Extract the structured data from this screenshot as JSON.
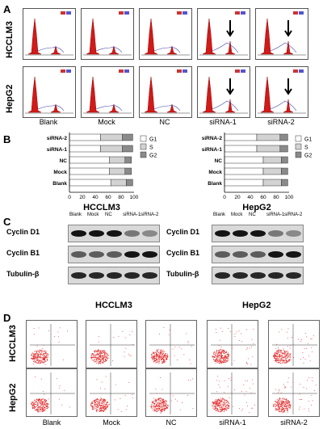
{
  "panels": {
    "A": "A",
    "B": "B",
    "C": "C",
    "D": "D"
  },
  "rows": {
    "hcclm3": "HCCLM3",
    "hepg2": "HepG2"
  },
  "columns": [
    "Blank",
    "Mock",
    "NC",
    "siRNA-1",
    "siRNA-2"
  ],
  "chart_data": [
    {
      "type": "bar",
      "stacked": true,
      "orientation": "horizontal",
      "title": "HCCLM3",
      "categories": [
        "siRNA-2",
        "siRNA-1",
        "NC",
        "Mock",
        "Blank"
      ],
      "series": [
        {
          "name": "G1",
          "values": [
            48,
            48,
            62,
            62,
            64
          ]
        },
        {
          "name": "S",
          "values": [
            34,
            34,
            24,
            24,
            24
          ]
        },
        {
          "name": "G2",
          "values": [
            16,
            16,
            10,
            10,
            10
          ]
        }
      ],
      "xticks": [
        "0",
        "20",
        "40",
        "60",
        "80",
        "100"
      ],
      "xlim": [
        0,
        100
      ],
      "legend_position": "right",
      "colors": {
        "G1": "#ffffff",
        "S": "#d3d3d3",
        "G2": "#8a8a8a"
      }
    },
    {
      "type": "bar",
      "stacked": true,
      "orientation": "horizontal",
      "title": "HepG2",
      "categories": [
        "siRNA-2",
        "siRNA-1",
        "NC",
        "Mock",
        "Blank"
      ],
      "series": [
        {
          "name": "G1",
          "values": [
            50,
            50,
            60,
            60,
            60
          ]
        },
        {
          "name": "S",
          "values": [
            36,
            36,
            28,
            28,
            28
          ]
        },
        {
          "name": "G2",
          "values": [
            12,
            12,
            10,
            10,
            10
          ]
        }
      ],
      "xticks": [
        "0",
        "20",
        "40",
        "60",
        "80",
        "100"
      ],
      "xlim": [
        0,
        100
      ],
      "legend_position": "right",
      "colors": {
        "G1": "#ffffff",
        "S": "#d3d3d3",
        "G2": "#8a8a8a"
      }
    }
  ],
  "blots": {
    "lanes": [
      "Blank",
      "Mock",
      "NC",
      "siRNA-1",
      "siRNA-2"
    ],
    "proteins": [
      "Cyclin D1",
      "Cyclin B1",
      "Tubulin-β"
    ],
    "titles": [
      "HCCLM3",
      "HepG2"
    ],
    "intensity": {
      "Cyclin D1": [
        1,
        1,
        1,
        0.45,
        0.35
      ],
      "Cyclin B1": [
        0.6,
        0.6,
        0.6,
        1,
        1
      ],
      "Tubulin-β": [
        0.9,
        0.9,
        0.9,
        0.9,
        0.9
      ]
    }
  },
  "colors": {
    "histogram_fill": "#d11a1a",
    "flow_dots": "#e02020"
  }
}
